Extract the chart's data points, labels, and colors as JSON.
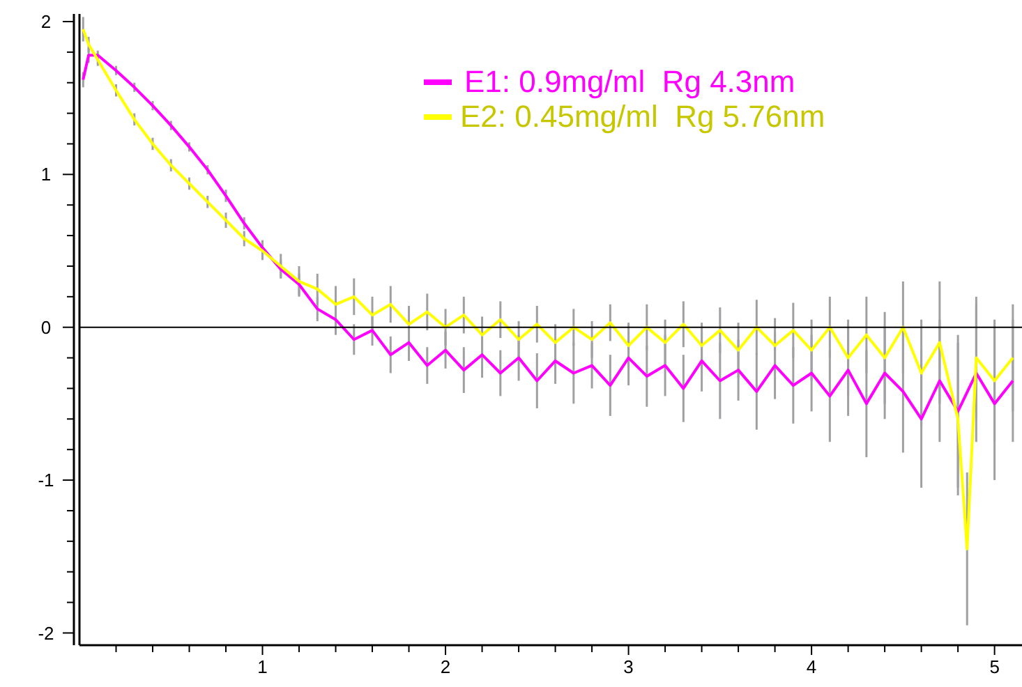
{
  "chart_data": {
    "type": "line",
    "xlim": [
      0,
      5.15
    ],
    "ylim": [
      -2.08,
      2.05
    ],
    "xticks": [
      {
        "value": 0.2,
        "label": null
      },
      {
        "value": 0.4,
        "label": null
      },
      {
        "value": 0.6,
        "label": null
      },
      {
        "value": 0.8,
        "label": null
      },
      1,
      {
        "value": 1.2,
        "label": null
      },
      {
        "value": 1.4,
        "label": null
      },
      {
        "value": 1.6,
        "label": null
      },
      {
        "value": 1.8,
        "label": null
      },
      2,
      {
        "value": 2.2,
        "label": null
      },
      {
        "value": 2.4,
        "label": null
      },
      {
        "value": 2.6,
        "label": null
      },
      {
        "value": 2.8,
        "label": null
      },
      3,
      {
        "value": 3.2,
        "label": null
      },
      {
        "value": 3.4,
        "label": null
      },
      {
        "value": 3.6,
        "label": null
      },
      {
        "value": 3.8,
        "label": null
      },
      4,
      {
        "value": 4.2,
        "label": null
      },
      {
        "value": 4.4,
        "label": null
      },
      {
        "value": 4.6,
        "label": null
      },
      {
        "value": 4.8,
        "label": null
      },
      5
    ],
    "yticks": [
      -2,
      {
        "value": -1.8,
        "label": null
      },
      {
        "value": -1.6,
        "label": null
      },
      {
        "value": -1.4,
        "label": null
      },
      {
        "value": -1.2,
        "label": null
      },
      -1,
      {
        "value": -0.8,
        "label": null
      },
      {
        "value": -0.6,
        "label": null
      },
      {
        "value": -0.4,
        "label": null
      },
      {
        "value": -0.2,
        "label": null
      },
      0,
      {
        "value": 0.2,
        "label": null
      },
      {
        "value": 0.4,
        "label": null
      },
      {
        "value": 0.6,
        "label": null
      },
      {
        "value": 0.8,
        "label": null
      },
      1,
      {
        "value": 1.2,
        "label": null
      },
      {
        "value": 1.4,
        "label": null
      },
      {
        "value": 1.6,
        "label": null
      },
      {
        "value": 1.8,
        "label": null
      },
      2
    ],
    "grid": false,
    "legend": "top right",
    "marker": "none",
    "line_style": "solid",
    "ref_lines": [
      {
        "axis": "y",
        "value": 0,
        "color": "#000000"
      }
    ],
    "series": [
      {
        "name": "E1: 0.9mg/ml  Rg 4.3nm",
        "color": "#ff00ff",
        "x": [
          0.02,
          0.05,
          0.1,
          0.2,
          0.3,
          0.4,
          0.5,
          0.6,
          0.7,
          0.8,
          0.9,
          1.0,
          1.1,
          1.2,
          1.3,
          1.4,
          1.5,
          1.6,
          1.7,
          1.8,
          1.9,
          2.0,
          2.1,
          2.2,
          2.3,
          2.4,
          2.5,
          2.6,
          2.7,
          2.8,
          2.9,
          3.0,
          3.1,
          3.2,
          3.3,
          3.4,
          3.5,
          3.6,
          3.7,
          3.8,
          3.9,
          4.0,
          4.1,
          4.2,
          4.3,
          4.4,
          4.5,
          4.6,
          4.7,
          4.8,
          4.9,
          5.0,
          5.1
        ],
        "values": [
          1.62,
          1.78,
          1.78,
          1.68,
          1.57,
          1.45,
          1.32,
          1.18,
          1.03,
          0.86,
          0.68,
          0.52,
          0.38,
          0.28,
          0.12,
          0.05,
          -0.08,
          -0.02,
          -0.18,
          -0.1,
          -0.25,
          -0.15,
          -0.28,
          -0.18,
          -0.3,
          -0.2,
          -0.35,
          -0.22,
          -0.3,
          -0.25,
          -0.38,
          -0.2,
          -0.32,
          -0.25,
          -0.4,
          -0.22,
          -0.35,
          -0.28,
          -0.42,
          -0.25,
          -0.38,
          -0.3,
          -0.45,
          -0.28,
          -0.5,
          -0.3,
          -0.42,
          -0.6,
          -0.35,
          -0.55,
          -0.3,
          -0.5,
          -0.35
        ],
        "errors": [
          0.05,
          0.05,
          0.03,
          0.03,
          0.03,
          0.03,
          0.03,
          0.03,
          0.03,
          0.04,
          0.04,
          0.05,
          0.06,
          0.07,
          0.08,
          0.1,
          0.1,
          0.1,
          0.12,
          0.12,
          0.12,
          0.12,
          0.15,
          0.15,
          0.15,
          0.15,
          0.18,
          0.15,
          0.2,
          0.15,
          0.2,
          0.18,
          0.2,
          0.2,
          0.22,
          0.2,
          0.25,
          0.2,
          0.25,
          0.22,
          0.25,
          0.25,
          0.3,
          0.3,
          0.35,
          0.3,
          0.4,
          0.45,
          0.4,
          0.5,
          0.45,
          0.5,
          0.4
        ]
      },
      {
        "name": "E2: 0.45mg/ml  Rg 5.76nm",
        "color": "#ffff00",
        "x": [
          0.02,
          0.05,
          0.1,
          0.2,
          0.3,
          0.4,
          0.5,
          0.6,
          0.7,
          0.8,
          0.9,
          1.0,
          1.1,
          1.2,
          1.3,
          1.4,
          1.5,
          1.6,
          1.7,
          1.8,
          1.9,
          2.0,
          2.1,
          2.2,
          2.3,
          2.4,
          2.5,
          2.6,
          2.7,
          2.8,
          2.9,
          3.0,
          3.1,
          3.2,
          3.3,
          3.4,
          3.5,
          3.6,
          3.7,
          3.8,
          3.9,
          4.0,
          4.1,
          4.2,
          4.3,
          4.4,
          4.5,
          4.6,
          4.7,
          4.8,
          4.85,
          4.9,
          5.0,
          5.1
        ],
        "values": [
          1.95,
          1.85,
          1.75,
          1.55,
          1.36,
          1.2,
          1.06,
          0.94,
          0.82,
          0.7,
          0.58,
          0.5,
          0.4,
          0.3,
          0.25,
          0.15,
          0.2,
          0.08,
          0.15,
          0.02,
          0.1,
          0.0,
          0.08,
          -0.05,
          0.05,
          -0.08,
          0.02,
          -0.1,
          0.0,
          -0.08,
          0.03,
          -0.12,
          0.0,
          -0.1,
          0.02,
          -0.12,
          -0.02,
          -0.15,
          0.0,
          -0.12,
          -0.02,
          -0.15,
          0.0,
          -0.2,
          -0.05,
          -0.2,
          0.0,
          -0.3,
          -0.1,
          -0.6,
          -1.45,
          -0.2,
          -0.35,
          -0.2
        ],
        "errors": [
          0.08,
          0.05,
          0.04,
          0.04,
          0.04,
          0.04,
          0.04,
          0.04,
          0.04,
          0.05,
          0.05,
          0.06,
          0.08,
          0.1,
          0.1,
          0.12,
          0.12,
          0.12,
          0.12,
          0.12,
          0.12,
          0.12,
          0.12,
          0.12,
          0.12,
          0.12,
          0.12,
          0.12,
          0.12,
          0.12,
          0.12,
          0.15,
          0.15,
          0.15,
          0.15,
          0.15,
          0.15,
          0.18,
          0.18,
          0.18,
          0.18,
          0.2,
          0.2,
          0.25,
          0.25,
          0.3,
          0.3,
          0.35,
          0.4,
          0.5,
          0.5,
          0.4,
          0.4,
          0.35
        ]
      }
    ]
  }
}
